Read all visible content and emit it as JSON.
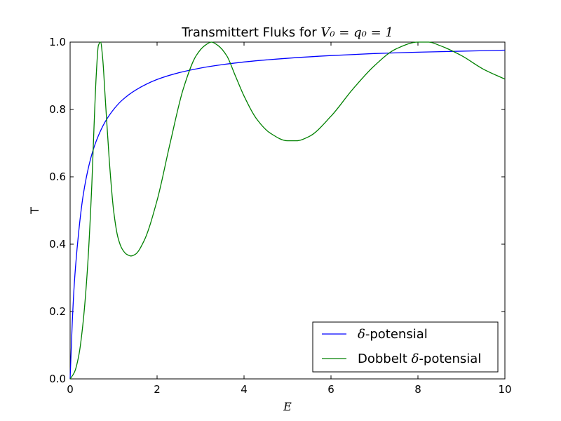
{
  "chart_data": {
    "type": "line",
    "title": {
      "prefix": "Transmittert Fluks for ",
      "math": "V₀ = q₀ = 1"
    },
    "xlabel": "E",
    "ylabel": "T",
    "xlim": [
      0,
      10
    ],
    "ylim": [
      0,
      1
    ],
    "x_ticks": [
      "0",
      "2",
      "4",
      "6",
      "8",
      "10"
    ],
    "y_ticks": [
      "0.0",
      "0.2",
      "0.4",
      "0.6",
      "0.8",
      "1.0"
    ],
    "grid": false,
    "legend_position": "lower-right",
    "series": [
      {
        "name": "δ-potensial",
        "name_parts": {
          "math": "δ",
          "text": "-potensial"
        },
        "color": "#0000ff",
        "x": [
          0,
          0.05,
          0.1,
          0.2,
          0.3,
          0.4,
          0.5,
          0.6,
          0.8,
          1.0,
          1.2,
          1.5,
          2.0,
          2.5,
          3.0,
          3.5,
          4.0,
          5.0,
          6.0,
          7.0,
          8.0,
          9.0,
          10.0
        ],
        "y": [
          0,
          0.17,
          0.29,
          0.44,
          0.545,
          0.615,
          0.667,
          0.706,
          0.762,
          0.8,
          0.828,
          0.857,
          0.889,
          0.909,
          0.923,
          0.933,
          0.941,
          0.952,
          0.96,
          0.966,
          0.97,
          0.973,
          0.976
        ]
      },
      {
        "name": "Dobbelt δ-potensial",
        "name_parts": {
          "text_before": "Dobbelt ",
          "math": "δ",
          "text": "-potensial"
        },
        "color": "#008000",
        "x": [
          0,
          0.1,
          0.2,
          0.3,
          0.4,
          0.5,
          0.55,
          0.6,
          0.65,
          0.7,
          0.75,
          0.8,
          0.9,
          1.0,
          1.1,
          1.2,
          1.3,
          1.4,
          1.5,
          1.7,
          2.0,
          2.3,
          2.6,
          2.9,
          3.1,
          3.25,
          3.4,
          3.6,
          3.8,
          4.0,
          4.3,
          4.6,
          5.0,
          5.2,
          5.5,
          6.0,
          6.5,
          7.0,
          7.5,
          8.0,
          8.25,
          8.5,
          9.0,
          9.5,
          10.0
        ],
        "y": [
          0,
          0.02,
          0.07,
          0.17,
          0.33,
          0.58,
          0.75,
          0.9,
          0.99,
          1.0,
          0.95,
          0.85,
          0.65,
          0.5,
          0.42,
          0.385,
          0.37,
          0.365,
          0.37,
          0.41,
          0.53,
          0.7,
          0.86,
          0.96,
          0.99,
          1.0,
          0.99,
          0.96,
          0.9,
          0.84,
          0.77,
          0.73,
          0.707,
          0.707,
          0.72,
          0.78,
          0.86,
          0.93,
          0.98,
          1.0,
          1.0,
          0.99,
          0.96,
          0.92,
          0.89
        ]
      }
    ]
  }
}
